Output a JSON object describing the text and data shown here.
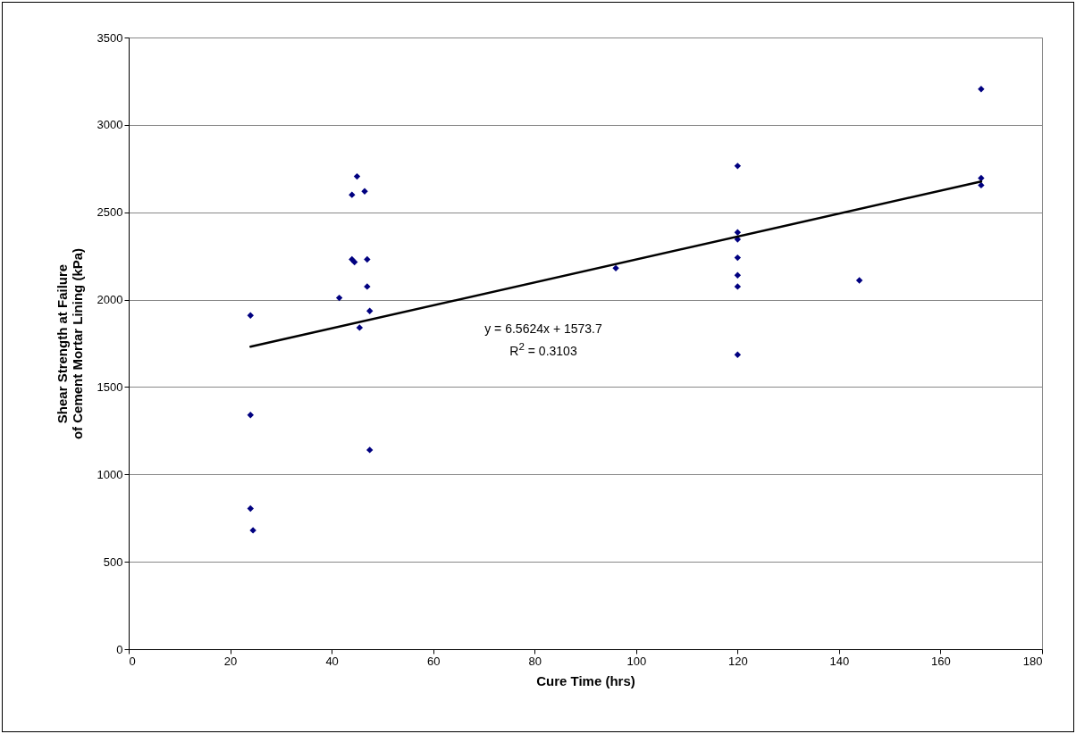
{
  "chart_data": {
    "type": "scatter",
    "xlabel": "Cure Time (hrs)",
    "ylabel": "Shear Strength at Failure\nof Cement Mortar Lining (kPa)",
    "xlim": [
      0,
      180
    ],
    "xticks": [
      0,
      20,
      40,
      60,
      80,
      100,
      120,
      140,
      160,
      180
    ],
    "ylim": [
      0,
      3500
    ],
    "yticks": [
      0,
      500,
      1000,
      1500,
      2000,
      2500,
      3000,
      3500
    ],
    "grid": "y",
    "series": [
      {
        "marker": "diamond",
        "color": "#000080",
        "x": [
          24,
          24,
          24,
          24.5,
          41.5,
          44,
          44,
          44.5,
          45,
          45.5,
          46.5,
          47,
          47,
          47.5,
          47.5,
          96,
          120,
          120,
          120,
          120,
          120,
          120,
          120,
          144,
          168,
          168,
          168
        ],
        "values": [
          1910,
          1340,
          805,
          680,
          2010,
          2600,
          2230,
          2215,
          2705,
          1840,
          2620,
          2230,
          2075,
          1935,
          1140,
          2180,
          2765,
          2385,
          2345,
          2240,
          2140,
          2075,
          1685,
          2110,
          3205,
          2695,
          2655
        ]
      },
      {
        "type": "line",
        "color": "#000000",
        "x": [
          24,
          168
        ],
        "values": [
          1731,
          2676
        ]
      }
    ],
    "annotations": [
      "y = 6.5624x + 1573.7",
      "R$^{2}$ = 0.3103"
    ]
  }
}
